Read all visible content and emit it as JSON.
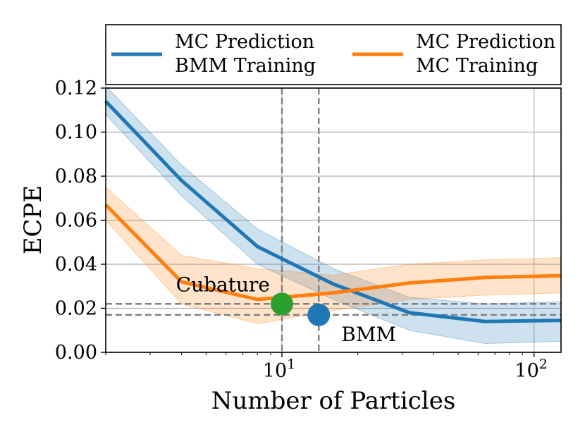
{
  "chart_data": {
    "type": "line",
    "xscale": "log",
    "xlabel": "Number of Particles",
    "ylabel": "ECPE",
    "xlim": [
      2,
      128
    ],
    "ylim": [
      0.0,
      0.12
    ],
    "y_ticks": [
      0.0,
      0.02,
      0.04,
      0.06,
      0.08,
      0.1,
      0.12
    ],
    "y_tick_labels": [
      "0.00",
      "0.02",
      "0.04",
      "0.06",
      "0.08",
      "0.10",
      "0.12"
    ],
    "x_ticks": [
      {
        "value": 10,
        "base": "10",
        "exp": "1"
      },
      {
        "value": 100,
        "base": "10",
        "exp": "2"
      }
    ],
    "grid": true,
    "legend_position": "top, outside the axes",
    "series": [
      {
        "name": "MC Prediction BMM Training",
        "legend_lines": [
          "MC Prediction",
          "BMM Training"
        ],
        "color": "#1f77b4",
        "x": [
          2,
          4,
          8,
          16,
          32,
          64,
          128
        ],
        "values": [
          0.114,
          0.078,
          0.048,
          0.031,
          0.018,
          0.014,
          0.0145
        ],
        "lower": [
          0.108,
          0.071,
          0.04,
          0.024,
          0.01,
          0.004,
          0.005
        ],
        "upper": [
          0.121,
          0.085,
          0.056,
          0.038,
          0.025,
          0.022,
          0.023
        ]
      },
      {
        "name": "MC Prediction MC Training",
        "legend_lines": [
          "MC Prediction",
          "MC Training"
        ],
        "color": "#ff7f0e",
        "x": [
          2,
          4,
          8,
          16,
          32,
          64,
          128
        ],
        "values": [
          0.067,
          0.032,
          0.024,
          0.027,
          0.0315,
          0.034,
          0.0348
        ],
        "lower": [
          0.06,
          0.022,
          0.013,
          0.019,
          0.024,
          0.026,
          0.027
        ],
        "upper": [
          0.075,
          0.044,
          0.038,
          0.035,
          0.04,
          0.042,
          0.043
        ]
      }
    ],
    "reference_lines": {
      "vertical": [
        10,
        14
      ],
      "horizontal": [
        0.022,
        0.017
      ]
    },
    "markers": [
      {
        "label": "Cubature",
        "x": 10,
        "y": 0.022,
        "color": "#2ca02c"
      },
      {
        "label": "BMM",
        "x": 14,
        "y": 0.017,
        "color": "#1f77b4"
      }
    ]
  }
}
